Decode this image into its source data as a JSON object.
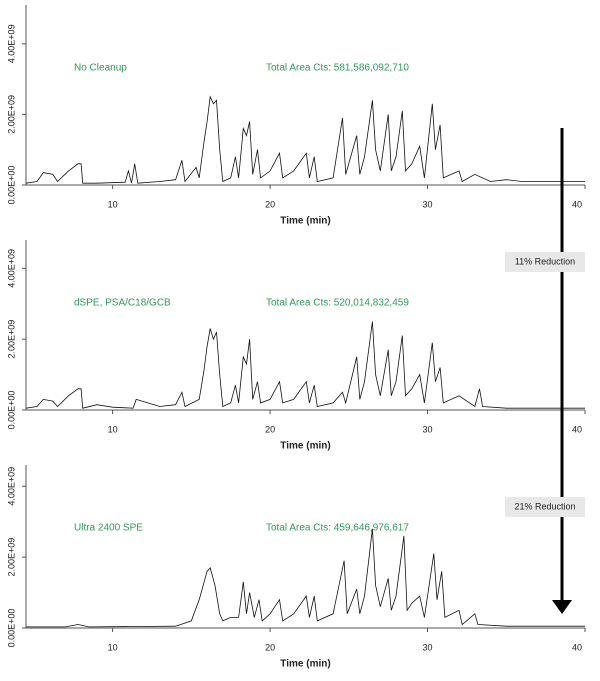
{
  "chart_data": [
    {
      "type": "line",
      "subtitle": "No Cleanup",
      "annotation": "Total Area Cts: 581,586,092,710",
      "xlabel": "Time (min)",
      "xlim": [
        4.5,
        40
      ],
      "xticks": [
        10,
        20,
        30,
        40
      ],
      "ylim": [
        0,
        5100000000.0
      ],
      "yticks": [
        {
          "value": 0,
          "label": "0.00E+00"
        },
        {
          "value": 2000000000.0,
          "label": "2.00E+09"
        },
        {
          "value": 4000000000.0,
          "label": "4.00E+09"
        }
      ],
      "color": "#111111",
      "x": [
        4.5,
        5.2,
        5.6,
        6.2,
        6.5,
        7.2,
        7.8,
        8.0,
        8.1,
        9,
        10.8,
        11,
        11.2,
        11.4,
        11.6,
        13,
        14,
        14.4,
        14.6,
        15.3,
        15.5,
        15.8,
        16,
        16.2,
        16.4,
        16.6,
        16.8,
        17,
        17.5,
        17.8,
        18,
        18.3,
        18.5,
        18.7,
        18.9,
        19.2,
        19.4,
        20,
        20.6,
        20.8,
        21.5,
        22.3,
        22.5,
        22.8,
        23,
        24,
        24.6,
        24.8,
        25.5,
        25.7,
        26,
        26.5,
        26.7,
        27,
        27.5,
        27.7,
        28,
        28.4,
        28.6,
        29,
        29.5,
        29.8,
        30.3,
        30.5,
        30.8,
        31,
        32,
        32.2,
        33,
        34,
        35,
        36,
        40
      ],
      "values": [
        50000000.0,
        100000000.0,
        350000000.0,
        300000000.0,
        100000000.0,
        400000000.0,
        600000000.0,
        600000000.0,
        50000000.0,
        50000000.0,
        80000000.0,
        400000000.0,
        50000000.0,
        600000000.0,
        50000000.0,
        100000000.0,
        150000000.0,
        700000000.0,
        100000000.0,
        500000000.0,
        200000000.0,
        1200000000.0,
        1800000000.0,
        2500000000.0,
        2300000000.0,
        2400000000.0,
        1000000000.0,
        100000000.0,
        200000000.0,
        800000000.0,
        200000000.0,
        1600000000.0,
        1400000000.0,
        1800000000.0,
        300000000.0,
        1000000000.0,
        200000000.0,
        400000000.0,
        900000000.0,
        200000000.0,
        400000000.0,
        900000000.0,
        200000000.0,
        800000000.0,
        100000000.0,
        200000000.0,
        1900000000.0,
        300000000.0,
        1400000000.0,
        300000000.0,
        800000000.0,
        2400000000.0,
        1000000000.0,
        400000000.0,
        2000000000.0,
        400000000.0,
        800000000.0,
        2100000000.0,
        400000000.0,
        600000000.0,
        1100000000.0,
        200000000.0,
        2300000000.0,
        1000000000.0,
        1700000000.0,
        200000000.0,
        400000000.0,
        100000000.0,
        300000000.0,
        100000000.0,
        150000000.0,
        100000000.0,
        100000000.0
      ]
    },
    {
      "type": "line",
      "subtitle": "dSPE, PSA/C18/GCB",
      "annotation": "Total Area Cts: 520,014,832,459",
      "xlabel": "Time (min)",
      "callout": "11% Reduction",
      "xlim": [
        4.5,
        40
      ],
      "xticks": [
        10,
        20,
        30,
        40
      ],
      "ylim": [
        0,
        4800000000.0
      ],
      "yticks": [
        {
          "value": 0,
          "label": "0.00E+00"
        },
        {
          "value": 2000000000.0,
          "label": "2.00E+09"
        },
        {
          "value": 4000000000.0,
          "label": "4.00E+09"
        }
      ],
      "color": "#111111",
      "x": [
        4.5,
        5.2,
        5.6,
        6.2,
        6.5,
        7.2,
        7.8,
        8.0,
        8.1,
        9,
        10,
        11.3,
        11.5,
        13,
        14,
        14.4,
        14.6,
        15.5,
        15.8,
        16,
        16.2,
        16.4,
        16.6,
        16.8,
        17,
        17.5,
        17.8,
        18,
        18.3,
        18.5,
        18.7,
        18.9,
        19.2,
        19.4,
        20,
        20.6,
        20.8,
        21.5,
        22.3,
        22.5,
        22.8,
        23,
        24,
        24.6,
        24.8,
        25.5,
        25.7,
        26,
        26.5,
        26.7,
        27,
        27.5,
        27.7,
        28,
        28.4,
        28.6,
        29,
        29.5,
        29.8,
        30.3,
        30.5,
        30.8,
        31,
        32,
        33,
        33.3,
        33.5,
        35,
        40
      ],
      "values": [
        50000000.0,
        100000000.0,
        300000000.0,
        250000000.0,
        100000000.0,
        400000000.0,
        600000000.0,
        600000000.0,
        50000000.0,
        150000000.0,
        80000000.0,
        50000000.0,
        300000000.0,
        100000000.0,
        150000000.0,
        500000000.0,
        100000000.0,
        300000000.0,
        1100000000.0,
        1800000000.0,
        2300000000.0,
        2000000000.0,
        2200000000.0,
        1000000000.0,
        100000000.0,
        200000000.0,
        700000000.0,
        200000000.0,
        1500000000.0,
        1300000000.0,
        2000000000.0,
        300000000.0,
        800000000.0,
        200000000.0,
        300000000.0,
        800000000.0,
        200000000.0,
        300000000.0,
        800000000.0,
        200000000.0,
        700000000.0,
        100000000.0,
        200000000.0,
        500000000.0,
        200000000.0,
        1500000000.0,
        300000000.0,
        800000000.0,
        2500000000.0,
        1000000000.0,
        400000000.0,
        1700000000.0,
        400000000.0,
        800000000.0,
        2100000000.0,
        400000000.0,
        600000000.0,
        1000000000.0,
        200000000.0,
        1900000000.0,
        800000000.0,
        1200000000.0,
        200000000.0,
        400000000.0,
        100000000.0,
        600000000.0,
        100000000.0,
        50000000.0,
        50000000.0
      ]
    },
    {
      "type": "line",
      "subtitle": "Ultra 2400 SPE",
      "annotation": "Total Area Cts: 459,646,976,617",
      "xlabel": "Time (min)",
      "callout": "21% Reduction",
      "xlim": [
        4.5,
        40
      ],
      "xticks": [
        10,
        20,
        30,
        40
      ],
      "ylim": [
        0,
        4600000000.0
      ],
      "yticks": [
        {
          "value": 0,
          "label": "0.00E+00"
        },
        {
          "value": 2000000000.0,
          "label": "2.00E+09"
        },
        {
          "value": 4000000000.0,
          "label": "4.00E+09"
        }
      ],
      "color": "#111111",
      "x": [
        4.5,
        7,
        7.8,
        8.5,
        14,
        15,
        15.5,
        16,
        16.2,
        16.5,
        16.8,
        17,
        17.5,
        18,
        18.3,
        18.5,
        18.7,
        19,
        19.3,
        19.5,
        20,
        20.6,
        20.8,
        21.5,
        22.3,
        22.5,
        22.8,
        23,
        24,
        24.7,
        24.9,
        25.5,
        25.7,
        26,
        26.5,
        26.7,
        27,
        27.5,
        27.7,
        28,
        28.5,
        28.7,
        29,
        29.5,
        29.8,
        30.4,
        30.6,
        30.9,
        31.1,
        32,
        32.2,
        33,
        33.2,
        35,
        40
      ],
      "values": [
        30000000.0,
        30000000.0,
        100000000.0,
        30000000.0,
        50000000.0,
        200000000.0,
        800000000.0,
        1600000000.0,
        1700000000.0,
        1200000000.0,
        400000000.0,
        200000000.0,
        300000000.0,
        300000000.0,
        1300000000.0,
        400000000.0,
        1000000000.0,
        300000000.0,
        800000000.0,
        200000000.0,
        400000000.0,
        800000000.0,
        200000000.0,
        400000000.0,
        900000000.0,
        300000000.0,
        900000000.0,
        200000000.0,
        400000000.0,
        1900000000.0,
        400000000.0,
        1100000000.0,
        400000000.0,
        900000000.0,
        2800000000.0,
        1200000000.0,
        600000000.0,
        1400000000.0,
        500000000.0,
        900000000.0,
        2600000000.0,
        500000000.0,
        700000000.0,
        900000000.0,
        300000000.0,
        2100000000.0,
        800000000.0,
        1600000000.0,
        300000000.0,
        500000000.0,
        100000000.0,
        400000000.0,
        100000000.0,
        50000000.0,
        50000000.0
      ]
    }
  ]
}
